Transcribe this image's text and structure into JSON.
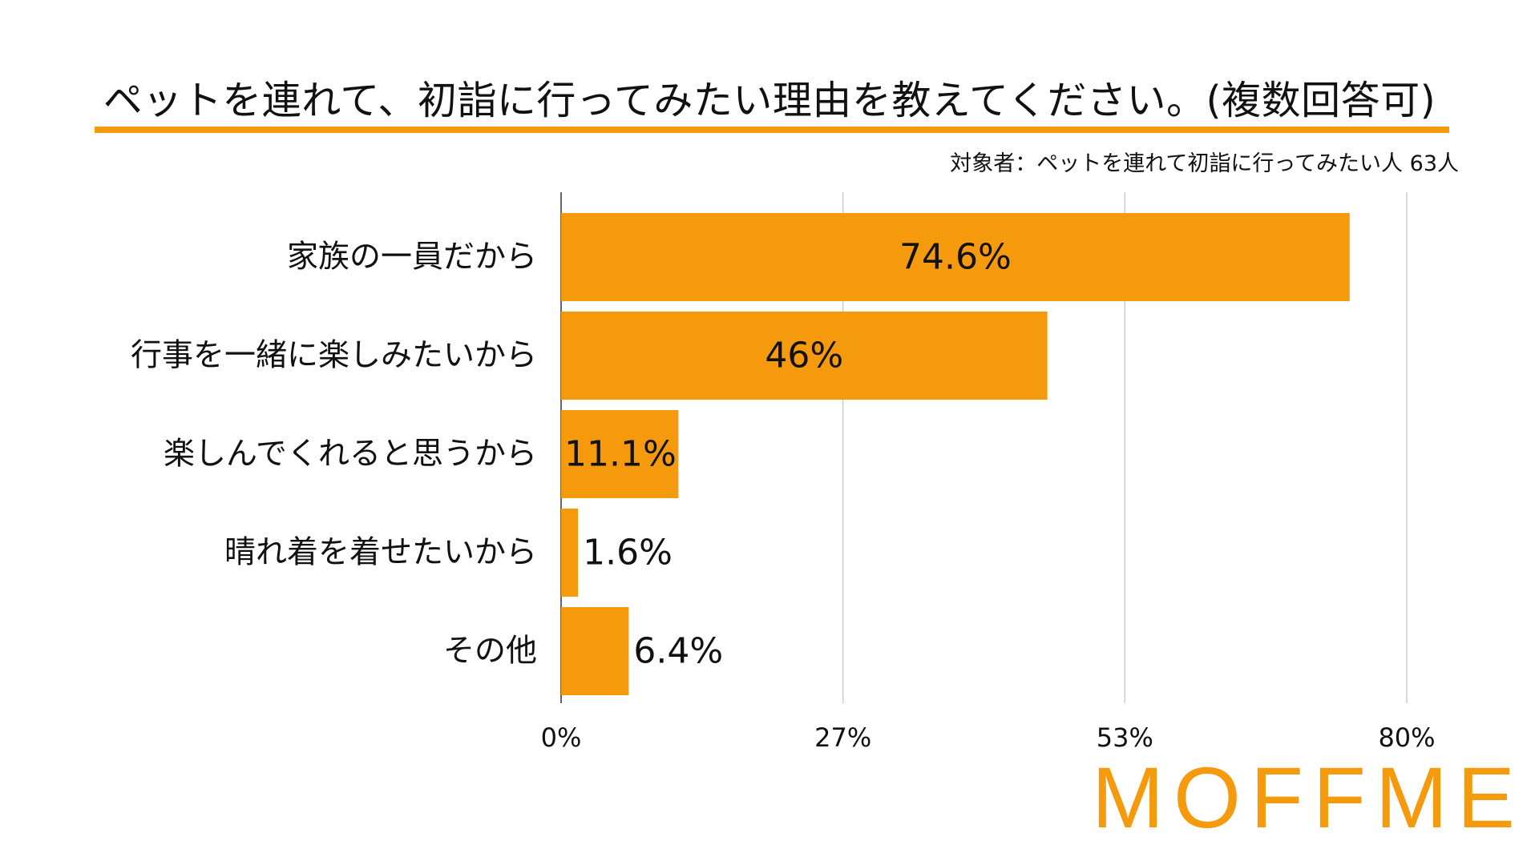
{
  "title": "ペットを連れて、初詣に行ってみたい理由を教えてください。(複数回答可)",
  "subtitle": "対象者：ペットを連れて初詣に行ってみたい人 63人",
  "brand": "MOFFME",
  "colors": {
    "accent": "#f59a0c",
    "bar": "#f59a0c",
    "grid": "#cccccc",
    "axis": "#333333",
    "text": "#111111"
  },
  "chart_data": {
    "type": "bar",
    "orientation": "horizontal",
    "categories": [
      "家族の一員だから",
      "行事を一緒に楽しみたいから",
      "楽しんでくれると思うから",
      "晴れ着を着せたいから",
      "その他"
    ],
    "values": [
      74.6,
      46,
      11.1,
      1.6,
      6.4
    ],
    "value_labels": [
      "74.6%",
      "46%",
      "11.1%",
      "1.6%",
      "6.4%"
    ],
    "xlim": [
      0,
      80
    ],
    "xticks": [
      0,
      26.67,
      53.33,
      80
    ],
    "xtick_labels": [
      "0%",
      "27%",
      "53%",
      "80%"
    ],
    "grid": true,
    "title": "ペットを連れて、初詣に行ってみたい理由を教えてください。(複数回答可)",
    "xlabel": "",
    "ylabel": ""
  }
}
